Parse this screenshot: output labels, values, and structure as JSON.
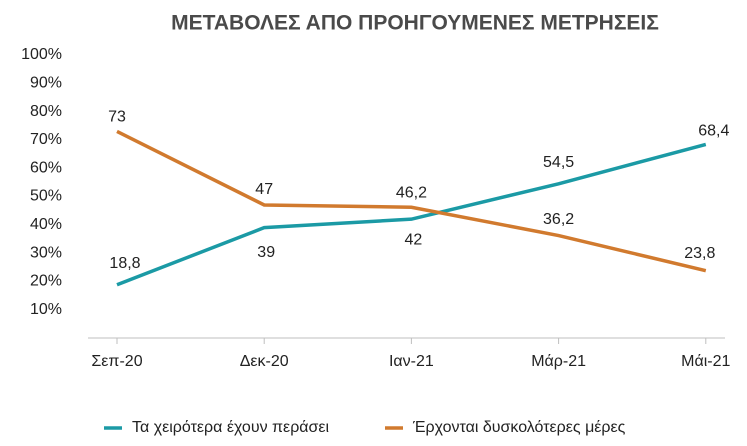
{
  "chart_data": {
    "type": "line",
    "title": "ΜΕΤΑΒΟΛΕΣ ΑΠΟ ΠΡΟΗΓΟΥΜΕΝΕΣ ΜΕΤΡΗΣΕΙΣ",
    "categories": [
      "Σεπ-20",
      "Δεκ-20",
      "Ιαν-21",
      "Μάρ-21",
      "Μάι-21"
    ],
    "series": [
      {
        "name": "Τα χειρότερα έχουν περάσει",
        "color": "#1b9aa5",
        "values": [
          18.8,
          39,
          42,
          54.5,
          68.4
        ],
        "value_labels": [
          "18,8",
          "39",
          "42",
          "54,5",
          "68,4"
        ]
      },
      {
        "name": "Έρχονται δυσκολότερες μέρες",
        "color": "#d17a2e",
        "values": [
          73,
          47,
          46.2,
          36.2,
          23.8
        ],
        "value_labels": [
          "73",
          "47",
          "46,2",
          "36,2",
          "23,8"
        ]
      }
    ],
    "ylim": [
      0,
      100
    ],
    "yticks": [
      {
        "value": 10,
        "label": "10%"
      },
      {
        "value": 20,
        "label": "20%"
      },
      {
        "value": 30,
        "label": "30%"
      },
      {
        "value": 40,
        "label": "40%"
      },
      {
        "value": 50,
        "label": "50%"
      },
      {
        "value": 60,
        "label": "60%"
      },
      {
        "value": 70,
        "label": "70%"
      },
      {
        "value": 80,
        "label": "80%"
      },
      {
        "value": 90,
        "label": "90%"
      },
      {
        "value": 100,
        "label": "100%"
      }
    ],
    "legend": "bottom"
  }
}
